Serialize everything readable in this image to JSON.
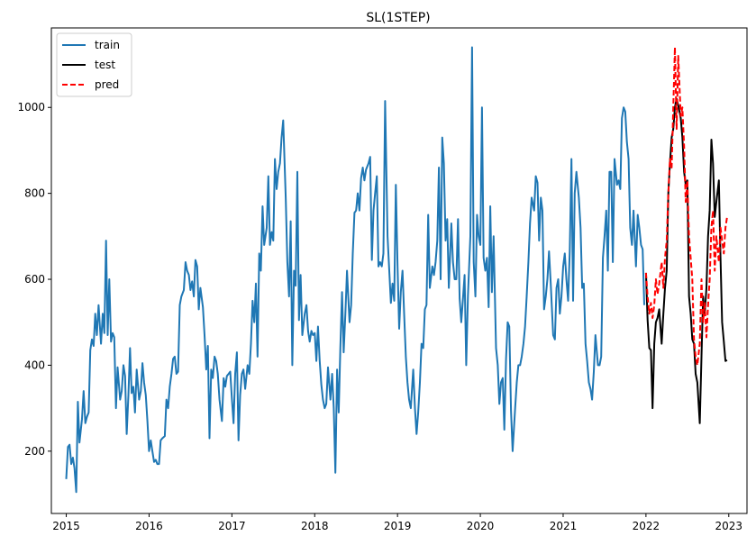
{
  "chart_data": {
    "type": "line",
    "title": "SL(1STEP)",
    "xlabel": "",
    "ylabel": "",
    "xlim": [
      2014.82,
      2023.22
    ],
    "ylim": [
      55,
      1185
    ],
    "x_ticks": [
      2015,
      2016,
      2017,
      2018,
      2019,
      2020,
      2021,
      2022,
      2023
    ],
    "x_tick_labels": [
      "2015",
      "2016",
      "2017",
      "2018",
      "2019",
      "2020",
      "2021",
      "2022",
      "2023"
    ],
    "y_ticks": [
      200,
      400,
      600,
      800,
      1000
    ],
    "y_tick_labels": [
      "200",
      "400",
      "600",
      "800",
      "1000"
    ],
    "grid": false,
    "legend_position": "top-left",
    "series": [
      {
        "name": "train",
        "color": "#1f77b4",
        "style": "solid",
        "x": [
          2015.0,
          2015.02,
          2015.04,
          2015.06,
          2015.08,
          2015.1,
          2015.12,
          2015.14,
          2015.16,
          2015.19,
          2015.21,
          2015.23,
          2015.25,
          2015.27,
          2015.29,
          2015.31,
          2015.33,
          2015.35,
          2015.37,
          2015.39,
          2015.42,
          2015.44,
          2015.46,
          2015.48,
          2015.5,
          2015.52,
          2015.54,
          2015.56,
          2015.58,
          2015.6,
          2015.62,
          2015.65,
          2015.67,
          2015.69,
          2015.71,
          2015.73,
          2015.75,
          2015.77,
          2015.79,
          2015.81,
          2015.83,
          2015.85,
          2015.88,
          2015.9,
          2015.92,
          2015.94,
          2015.96,
          2015.98,
          2016.0,
          2016.02,
          2016.04,
          2016.06,
          2016.08,
          2016.1,
          2016.12,
          2016.14,
          2016.16,
          2016.19,
          2016.21,
          2016.23,
          2016.25,
          2016.27,
          2016.29,
          2016.31,
          2016.33,
          2016.35,
          2016.37,
          2016.39,
          2016.42,
          2016.44,
          2016.46,
          2016.48,
          2016.5,
          2016.52,
          2016.54,
          2016.56,
          2016.58,
          2016.6,
          2016.62,
          2016.65,
          2016.67,
          2016.69,
          2016.71,
          2016.73,
          2016.75,
          2016.77,
          2016.79,
          2016.81,
          2016.83,
          2016.85,
          2016.88,
          2016.9,
          2016.92,
          2016.94,
          2016.96,
          2016.98,
          2017.0,
          2017.02,
          2017.04,
          2017.06,
          2017.08,
          2017.1,
          2017.12,
          2017.14,
          2017.16,
          2017.19,
          2017.21,
          2017.23,
          2017.25,
          2017.27,
          2017.29,
          2017.31,
          2017.33,
          2017.35,
          2017.37,
          2017.39,
          2017.42,
          2017.44,
          2017.46,
          2017.48,
          2017.5,
          2017.52,
          2017.54,
          2017.56,
          2017.58,
          2017.6,
          2017.62,
          2017.65,
          2017.67,
          2017.69,
          2017.71,
          2017.73,
          2017.75,
          2017.77,
          2017.79,
          2017.81,
          2017.83,
          2017.85,
          2017.88,
          2017.9,
          2017.92,
          2017.94,
          2017.96,
          2017.98,
          2018.0,
          2018.02,
          2018.04,
          2018.06,
          2018.08,
          2018.1,
          2018.12,
          2018.14,
          2018.16,
          2018.19,
          2018.21,
          2018.23,
          2018.25,
          2018.27,
          2018.29,
          2018.31,
          2018.33,
          2018.35,
          2018.37,
          2018.39,
          2018.42,
          2018.44,
          2018.46,
          2018.48,
          2018.5,
          2018.52,
          2018.54,
          2018.56,
          2018.58,
          2018.6,
          2018.62,
          2018.65,
          2018.67,
          2018.69,
          2018.71,
          2018.73,
          2018.75,
          2018.77,
          2018.79,
          2018.81,
          2018.83,
          2018.85,
          2018.88,
          2018.9,
          2018.92,
          2018.94,
          2018.96,
          2018.98,
          2019.0,
          2019.02,
          2019.04,
          2019.06,
          2019.08,
          2019.1,
          2019.12,
          2019.14,
          2019.16,
          2019.19,
          2019.21,
          2019.23,
          2019.25,
          2019.27,
          2019.29,
          2019.31,
          2019.33,
          2019.35,
          2019.37,
          2019.39,
          2019.42,
          2019.44,
          2019.46,
          2019.48,
          2019.5,
          2019.52,
          2019.54,
          2019.56,
          2019.58,
          2019.6,
          2019.62,
          2019.65,
          2019.67,
          2019.69,
          2019.71,
          2019.73,
          2019.75,
          2019.77,
          2019.79,
          2019.81,
          2019.83,
          2019.85,
          2019.88,
          2019.9,
          2019.92,
          2019.94,
          2019.96,
          2019.98,
          2020.0,
          2020.02,
          2020.04,
          2020.06,
          2020.08,
          2020.1,
          2020.12,
          2020.14,
          2020.16,
          2020.19,
          2020.21,
          2020.23,
          2020.25,
          2020.27,
          2020.29,
          2020.31,
          2020.33,
          2020.35,
          2020.37,
          2020.39,
          2020.42,
          2020.44,
          2020.46,
          2020.48,
          2020.5,
          2020.52,
          2020.54,
          2020.56,
          2020.58,
          2020.6,
          2020.62,
          2020.65,
          2020.67,
          2020.69,
          2020.71,
          2020.73,
          2020.75,
          2020.77,
          2020.79,
          2020.81,
          2020.83,
          2020.85,
          2020.88,
          2020.9,
          2020.92,
          2020.94,
          2020.96,
          2020.98,
          2021.0,
          2021.02,
          2021.04,
          2021.06,
          2021.08,
          2021.1,
          2021.12,
          2021.14,
          2021.16,
          2021.19,
          2021.21,
          2021.23,
          2021.25,
          2021.27,
          2021.29,
          2021.31,
          2021.33,
          2021.35,
          2021.37,
          2021.39,
          2021.42,
          2021.44,
          2021.46,
          2021.48,
          2021.5,
          2021.52,
          2021.54,
          2021.56,
          2021.58,
          2021.6,
          2021.62,
          2021.65,
          2021.67,
          2021.69,
          2021.71,
          2021.73,
          2021.75,
          2021.77,
          2021.79,
          2021.81,
          2021.83,
          2021.85,
          2021.88,
          2021.9,
          2021.92,
          2021.94,
          2021.96,
          2021.98
        ],
        "y": [
          135,
          210,
          215,
          170,
          185,
          160,
          105,
          315,
          220,
          275,
          340,
          265,
          280,
          290,
          435,
          460,
          445,
          520,
          470,
          540,
          450,
          520,
          475,
          690,
          470,
          600,
          455,
          475,
          465,
          300,
          395,
          320,
          340,
          400,
          375,
          240,
          330,
          440,
          335,
          350,
          290,
          390,
          320,
          340,
          405,
          360,
          330,
          270,
          200,
          225,
          200,
          175,
          180,
          170,
          170,
          225,
          230,
          235,
          320,
          300,
          350,
          380,
          415,
          420,
          380,
          385,
          540,
          560,
          575,
          640,
          620,
          610,
          575,
          595,
          560,
          645,
          630,
          530,
          580,
          535,
          470,
          390,
          445,
          230,
          390,
          370,
          420,
          410,
          380,
          320,
          270,
          370,
          350,
          375,
          380,
          385,
          320,
          265,
          380,
          430,
          225,
          330,
          380,
          390,
          345,
          400,
          380,
          450,
          550,
          500,
          590,
          420,
          660,
          620,
          770,
          680,
          720,
          840,
          680,
          710,
          690,
          880,
          810,
          850,
          870,
          930,
          970,
          790,
          640,
          560,
          735,
          400,
          620,
          585,
          850,
          505,
          610,
          470,
          520,
          540,
          480,
          455,
          480,
          470,
          475,
          410,
          490,
          410,
          355,
          320,
          300,
          310,
          395,
          320,
          380,
          300,
          150,
          390,
          290,
          440,
          570,
          430,
          520,
          620,
          500,
          540,
          660,
          755,
          760,
          800,
          760,
          835,
          860,
          830,
          855,
          870,
          885,
          645,
          760,
          800,
          840,
          630,
          640,
          630,
          660,
          1015,
          700,
          620,
          545,
          590,
          550,
          820,
          630,
          485,
          570,
          620,
          520,
          420,
          360,
          320,
          300,
          390,
          300,
          240,
          290,
          360,
          450,
          440,
          530,
          540,
          750,
          580,
          630,
          610,
          640,
          690,
          860,
          600,
          930,
          870,
          690,
          740,
          580,
          730,
          640,
          600,
          600,
          740,
          555,
          500,
          555,
          610,
          400,
          560,
          700,
          1140,
          640,
          560,
          750,
          700,
          680,
          1000,
          650,
          620,
          650,
          535,
          770,
          570,
          700,
          440,
          400,
          310,
          360,
          370,
          250,
          415,
          500,
          490,
          295,
          200,
          300,
          360,
          400,
          400,
          420,
          450,
          490,
          560,
          640,
          730,
          790,
          760,
          840,
          825,
          690,
          790,
          760,
          530,
          560,
          600,
          665,
          590,
          470,
          460,
          580,
          600,
          520,
          560,
          630,
          660,
          600,
          550,
          665,
          880,
          550,
          800,
          850,
          790,
          720,
          580,
          590,
          450,
          410,
          360,
          345,
          320,
          385,
          470,
          400,
          400,
          420,
          650,
          700,
          760,
          620,
          850,
          850,
          640,
          880,
          820,
          830,
          810,
          975,
          1000,
          990,
          920,
          880,
          720,
          680,
          760,
          630,
          750,
          720,
          680,
          670,
          540
        ]
      },
      {
        "name": "test",
        "color": "#000000",
        "style": "solid",
        "x": [
          2022.0,
          2022.02,
          2022.04,
          2022.06,
          2022.08,
          2022.1,
          2022.12,
          2022.14,
          2022.16,
          2022.19,
          2022.21,
          2022.23,
          2022.25,
          2022.27,
          2022.29,
          2022.31,
          2022.33,
          2022.35,
          2022.37,
          2022.39,
          2022.42,
          2022.44,
          2022.46,
          2022.48,
          2022.5,
          2022.52,
          2022.54,
          2022.56,
          2022.58,
          2022.6,
          2022.62,
          2022.65,
          2022.67,
          2022.69,
          2022.71,
          2022.73,
          2022.75,
          2022.77,
          2022.79,
          2022.81,
          2022.83,
          2022.85,
          2022.88,
          2022.9,
          2022.92,
          2022.94,
          2022.96,
          2022.98
        ],
        "y": [
          615,
          505,
          440,
          435,
          300,
          450,
          500,
          510,
          530,
          450,
          520,
          580,
          620,
          800,
          870,
          930,
          950,
          1000,
          1020,
          1005,
          975,
          930,
          850,
          820,
          830,
          560,
          520,
          460,
          450,
          380,
          360,
          265,
          420,
          560,
          520,
          580,
          700,
          760,
          925,
          870,
          745,
          780,
          830,
          650,
          500,
          455,
          410,
          412
        ]
      },
      {
        "name": "pred",
        "color": "#ff0000",
        "style": "dashed",
        "x": [
          2022.0,
          2022.02,
          2022.04,
          2022.06,
          2022.08,
          2022.1,
          2022.12,
          2022.14,
          2022.16,
          2022.19,
          2022.21,
          2022.23,
          2022.25,
          2022.27,
          2022.29,
          2022.31,
          2022.33,
          2022.35,
          2022.37,
          2022.39,
          2022.42,
          2022.44,
          2022.46,
          2022.48,
          2022.5,
          2022.52,
          2022.54,
          2022.56,
          2022.58,
          2022.6,
          2022.62,
          2022.65,
          2022.67,
          2022.69,
          2022.71,
          2022.73,
          2022.75,
          2022.77,
          2022.79,
          2022.81,
          2022.83,
          2022.85,
          2022.88,
          2022.9,
          2022.92,
          2022.94,
          2022.96,
          2022.98
        ],
        "y": [
          615,
          560,
          520,
          545,
          510,
          540,
          600,
          565,
          590,
          640,
          580,
          650,
          690,
          800,
          880,
          860,
          1000,
          1140,
          950,
          1120,
          980,
          1000,
          910,
          780,
          830,
          700,
          650,
          600,
          460,
          420,
          400,
          450,
          600,
          500,
          545,
          465,
          540,
          600,
          720,
          760,
          620,
          700,
          640,
          720,
          690,
          660,
          720,
          745
        ]
      }
    ]
  }
}
